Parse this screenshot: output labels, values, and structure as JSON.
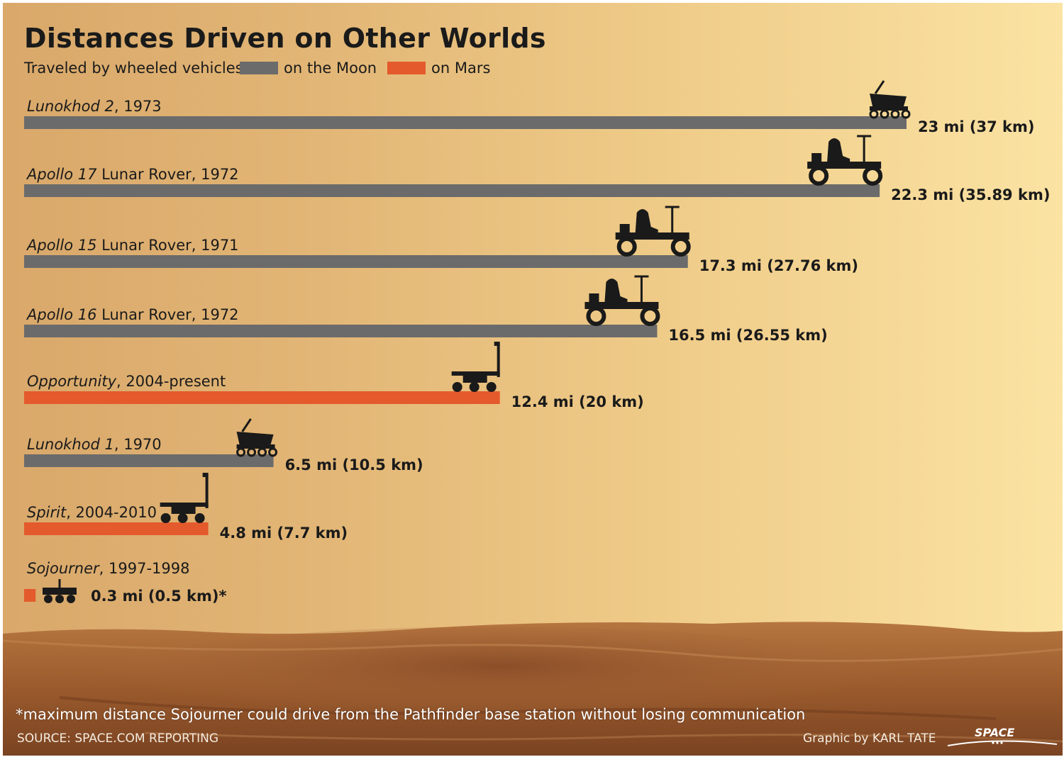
{
  "title": "Distances Driven on Other Worlds",
  "subtitle": "Traveled by wheeled vehicles",
  "legend": [
    {
      "label": "on the Moon",
      "color": "#6b6b6b"
    },
    {
      "label": "on Mars",
      "color": "#e45a2c"
    }
  ],
  "colors": {
    "moon": "#6b6b6b",
    "mars": "#e45a2c",
    "text": "#1a1a1a"
  },
  "chart_data": {
    "type": "bar",
    "orientation": "horizontal",
    "unit": "mi",
    "xlim": [
      0,
      25
    ],
    "grid": false,
    "legend_position": "top",
    "series": [
      {
        "name": "on the Moon",
        "color": "#6b6b6b"
      },
      {
        "name": "on Mars",
        "color": "#e45a2c"
      }
    ],
    "bars": [
      {
        "name": "Lunokhod 2",
        "year": ", 1973",
        "miles": 23,
        "value_label": "23 mi (37 km)",
        "world": "moon",
        "icon": "lunokhod-rover-icon"
      },
      {
        "name": "Apollo 17",
        "year": " Lunar Rover, 1972",
        "miles": 22.3,
        "value_label": "22.3 mi (35.89 km)",
        "world": "moon",
        "icon": "lunar-rover-icon"
      },
      {
        "name": "Apollo 15",
        "year": " Lunar Rover, 1971",
        "miles": 17.3,
        "value_label": "17.3 mi (27.76 km)",
        "world": "moon",
        "icon": "lunar-rover-icon"
      },
      {
        "name": "Apollo 16",
        "year": " Lunar Rover, 1972",
        "miles": 16.5,
        "value_label": "16.5 mi (26.55 km)",
        "world": "moon",
        "icon": "lunar-rover-icon"
      },
      {
        "name": "Opportunity",
        "year": ", 2004-present",
        "miles": 12.4,
        "value_label": "12.4 mi (20 km)",
        "world": "mars",
        "icon": "mars-rover-icon"
      },
      {
        "name": "Lunokhod 1",
        "year": ", 1970",
        "miles": 6.5,
        "value_label": "6.5 mi (10.5  km)",
        "world": "moon",
        "icon": "lunokhod-rover-icon"
      },
      {
        "name": "Spirit",
        "year": ", 2004-2010",
        "miles": 4.8,
        "value_label": "4.8 mi (7.7 km)",
        "world": "mars",
        "icon": "mars-rover-icon"
      },
      {
        "name": "Sojourner",
        "year": ", 1997-1998",
        "miles": 0.3,
        "value_label": "0.3 mi (0.5 km)*",
        "world": "mars",
        "icon": "sojourner-rover-icon"
      }
    ]
  },
  "footnote": "*maximum distance Sojourner could drive from the Pathfinder base station without losing communication",
  "source": "SOURCE: SPACE.COM REPORTING",
  "credit": "Graphic by KARL TATE",
  "logo": "SPACE"
}
